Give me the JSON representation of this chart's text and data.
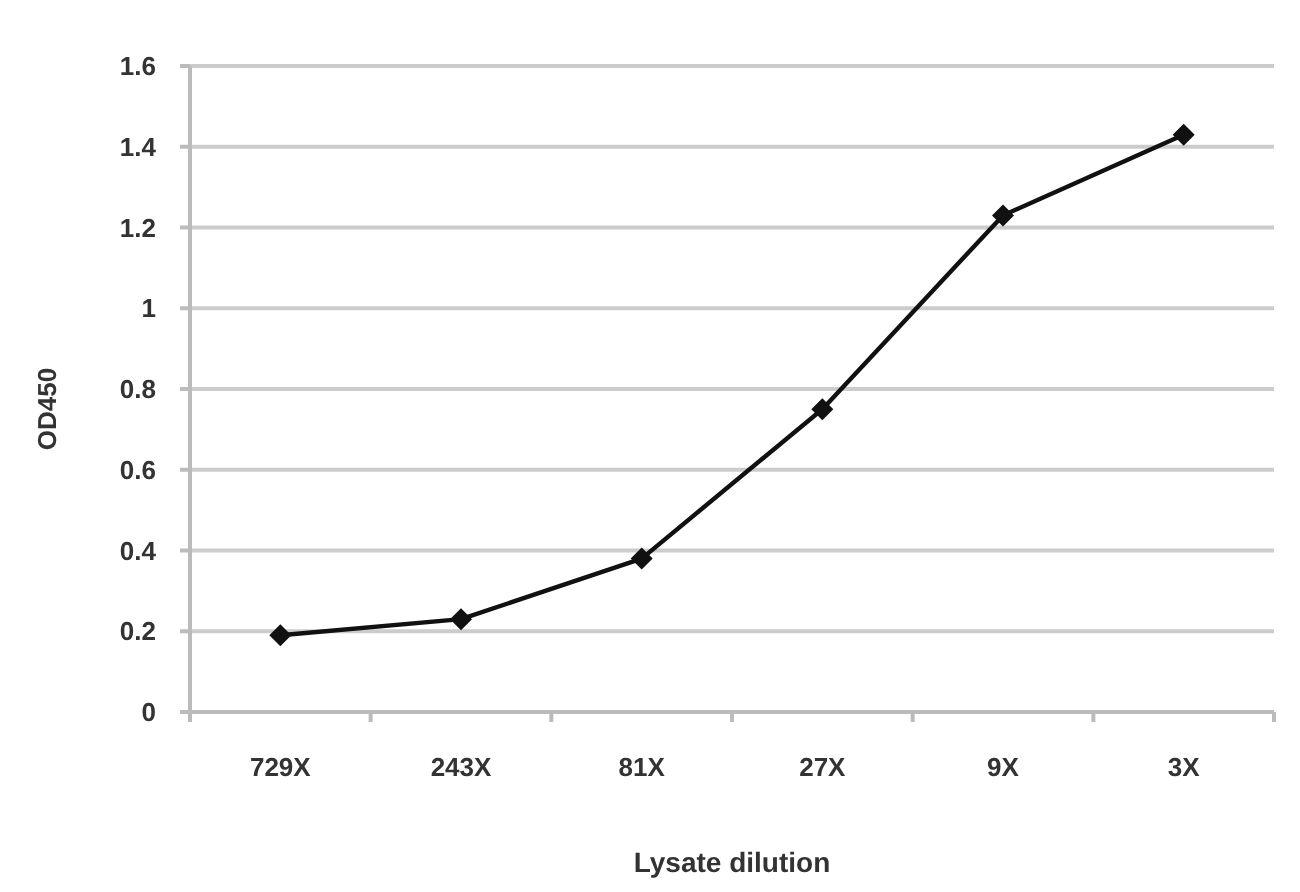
{
  "chart_data": {
    "type": "line",
    "xlabel": "Lysate dilution",
    "ylabel": "OD450",
    "categories": [
      "729X",
      "243X",
      "81X",
      "27X",
      "9X",
      "3X"
    ],
    "series": [
      {
        "color": "#111111",
        "values": [
          0.19,
          0.23,
          0.38,
          0.75,
          1.23,
          1.43
        ]
      }
    ],
    "ylim": [
      0,
      1.6
    ],
    "yticks": [
      0,
      0.2,
      0.4,
      0.6,
      0.8,
      1,
      1.2,
      1.4,
      1.6
    ],
    "grid": "y",
    "marker": "diamond",
    "line_style": "solid"
  }
}
